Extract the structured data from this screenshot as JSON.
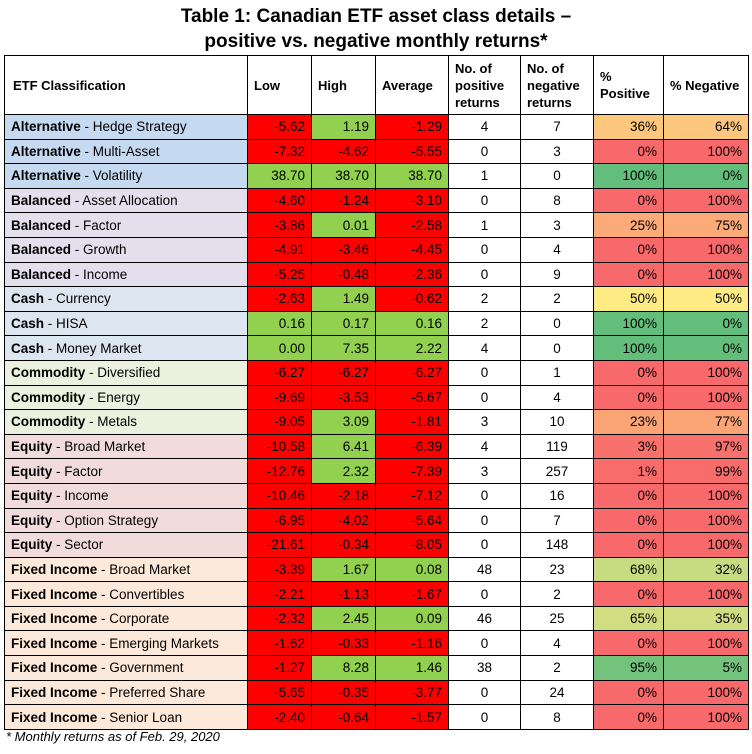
{
  "title_line1": "Table 1: Canadian ETF asset class details –",
  "title_line2": "positive vs. negative monthly returns*",
  "footnote": "* Monthly returns as of Feb. 29, 2020",
  "colors": {
    "red": "#ff0000",
    "green": "#92d050",
    "alternative": "#c5d9f1",
    "balanced": "#e4dfec",
    "cash": "#dce6f1",
    "commodity": "#ebf1de",
    "equity": "#f2dcdb",
    "fixed_income": "#fde9d9"
  },
  "chart_data": {
    "type": "table",
    "columns": [
      "ETF Classification",
      "Low",
      "High",
      "Average",
      "No. of positive returns",
      "No. of negative returns",
      "% Positive",
      "% Negative"
    ],
    "rows": [
      {
        "group": "Alternative",
        "sub": " - Hedge Strategy",
        "low": "-5.62",
        "high": "1.19",
        "avg": "-1.29",
        "pos": "4",
        "neg": "7",
        "ppos": "36%",
        "pneg": "64%"
      },
      {
        "group": "Alternative",
        "sub": " - Multi-Asset",
        "low": "-7.32",
        "high": "-4.62",
        "avg": "-5.55",
        "pos": "0",
        "neg": "3",
        "ppos": "0%",
        "pneg": "100%"
      },
      {
        "group": "Alternative",
        "sub": " - Volatility",
        "low": "38.70",
        "high": "38.70",
        "avg": "38.70",
        "pos": "1",
        "neg": "0",
        "ppos": "100%",
        "pneg": "0%"
      },
      {
        "group": "Balanced",
        "sub": " - Asset Allocation",
        "low": "-4.60",
        "high": "-1.24",
        "avg": "-3.10",
        "pos": "0",
        "neg": "8",
        "ppos": "0%",
        "pneg": "100%"
      },
      {
        "group": "Balanced",
        "sub": " - Factor",
        "low": "-3.86",
        "high": "0.01",
        "avg": "-2.58",
        "pos": "1",
        "neg": "3",
        "ppos": "25%",
        "pneg": "75%"
      },
      {
        "group": "Balanced",
        "sub": " - Growth",
        "low": "-4.91",
        "high": "-3.46",
        "avg": "-4.45",
        "pos": "0",
        "neg": "4",
        "ppos": "0%",
        "pneg": "100%"
      },
      {
        "group": "Balanced",
        "sub": " - Income",
        "low": "-5.25",
        "high": "-0.48",
        "avg": "-2.36",
        "pos": "0",
        "neg": "9",
        "ppos": "0%",
        "pneg": "100%"
      },
      {
        "group": "Cash",
        "sub": " - Currency",
        "low": "-2.63",
        "high": "1.49",
        "avg": "-0.62",
        "pos": "2",
        "neg": "2",
        "ppos": "50%",
        "pneg": "50%"
      },
      {
        "group": "Cash",
        "sub": " - HISA",
        "low": "0.16",
        "high": "0.17",
        "avg": "0.16",
        "pos": "2",
        "neg": "0",
        "ppos": "100%",
        "pneg": "0%"
      },
      {
        "group": "Cash",
        "sub": " - Money Market",
        "low": "0.00",
        "high": "7.35",
        "avg": "2.22",
        "pos": "4",
        "neg": "0",
        "ppos": "100%",
        "pneg": "0%"
      },
      {
        "group": "Commodity",
        "sub": " - Diversified",
        "low": "-6.27",
        "high": "-6.27",
        "avg": "-6.27",
        "pos": "0",
        "neg": "1",
        "ppos": "0%",
        "pneg": "100%"
      },
      {
        "group": "Commodity",
        "sub": " - Energy",
        "low": "-9.69",
        "high": "-3.53",
        "avg": "-5.67",
        "pos": "0",
        "neg": "4",
        "ppos": "0%",
        "pneg": "100%"
      },
      {
        "group": "Commodity",
        "sub": " - Metals",
        "low": "-9.05",
        "high": "3.09",
        "avg": "-1.81",
        "pos": "3",
        "neg": "10",
        "ppos": "23%",
        "pneg": "77%"
      },
      {
        "group": "Equity",
        "sub": " - Broad Market",
        "low": "-10.58",
        "high": "6.41",
        "avg": "-6.39",
        "pos": "4",
        "neg": "119",
        "ppos": "3%",
        "pneg": "97%"
      },
      {
        "group": "Equity",
        "sub": " - Factor",
        "low": "-12.76",
        "high": "2.32",
        "avg": "-7.39",
        "pos": "3",
        "neg": "257",
        "ppos": "1%",
        "pneg": "99%"
      },
      {
        "group": "Equity",
        "sub": " - Income",
        "low": "-10.46",
        "high": "-2.18",
        "avg": "-7.12",
        "pos": "0",
        "neg": "16",
        "ppos": "0%",
        "pneg": "100%"
      },
      {
        "group": "Equity",
        "sub": " - Option Strategy",
        "low": "-6.95",
        "high": "-4.02",
        "avg": "-5.64",
        "pos": "0",
        "neg": "7",
        "ppos": "0%",
        "pneg": "100%"
      },
      {
        "group": "Equity",
        "sub": " - Sector",
        "low": "-21.61",
        "high": "-0.34",
        "avg": "-8.05",
        "pos": "0",
        "neg": "148",
        "ppos": "0%",
        "pneg": "100%"
      },
      {
        "group": "Fixed Income",
        "sub": " - Broad Market",
        "low": "-3.39",
        "high": "1.67",
        "avg": "0.08",
        "pos": "48",
        "neg": "23",
        "ppos": "68%",
        "pneg": "32%"
      },
      {
        "group": "Fixed Income",
        "sub": " - Convertibles",
        "low": "-2.21",
        "high": "-1.13",
        "avg": "-1.67",
        "pos": "0",
        "neg": "2",
        "ppos": "0%",
        "pneg": "100%"
      },
      {
        "group": "Fixed Income",
        "sub": " - Corporate",
        "low": "-2.32",
        "high": "2.45",
        "avg": "0.09",
        "pos": "46",
        "neg": "25",
        "ppos": "65%",
        "pneg": "35%"
      },
      {
        "group": "Fixed Income",
        "sub": " - Emerging Markets",
        "low": "-1.62",
        "high": "-0.33",
        "avg": "-1.16",
        "pos": "0",
        "neg": "4",
        "ppos": "0%",
        "pneg": "100%"
      },
      {
        "group": "Fixed Income",
        "sub": " - Government",
        "low": "-1.27",
        "high": "8.28",
        "avg": "1.46",
        "pos": "38",
        "neg": "2",
        "ppos": "95%",
        "pneg": "5%"
      },
      {
        "group": "Fixed Income",
        "sub": " - Preferred Share",
        "low": "-5.65",
        "high": "-0.35",
        "avg": "-3.77",
        "pos": "0",
        "neg": "24",
        "ppos": "0%",
        "pneg": "100%"
      },
      {
        "group": "Fixed Income",
        "sub": " - Senior Loan",
        "low": "-2.40",
        "high": "-0.64",
        "avg": "-1.57",
        "pos": "0",
        "neg": "8",
        "ppos": "0%",
        "pneg": "100%"
      }
    ]
  }
}
